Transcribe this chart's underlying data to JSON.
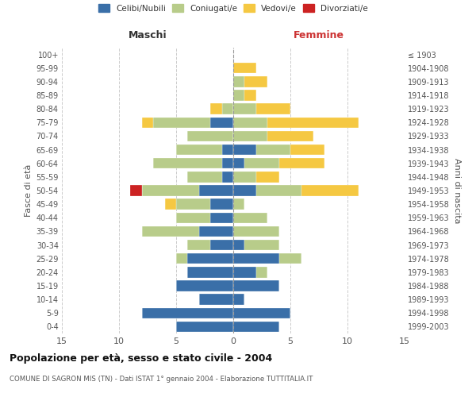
{
  "age_groups": [
    "0-4",
    "5-9",
    "10-14",
    "15-19",
    "20-24",
    "25-29",
    "30-34",
    "35-39",
    "40-44",
    "45-49",
    "50-54",
    "55-59",
    "60-64",
    "65-69",
    "70-74",
    "75-79",
    "80-84",
    "85-89",
    "90-94",
    "95-99",
    "100+"
  ],
  "birth_years": [
    "1999-2003",
    "1994-1998",
    "1989-1993",
    "1984-1988",
    "1979-1983",
    "1974-1978",
    "1969-1973",
    "1964-1968",
    "1959-1963",
    "1954-1958",
    "1949-1953",
    "1944-1948",
    "1939-1943",
    "1934-1938",
    "1929-1933",
    "1924-1928",
    "1919-1923",
    "1914-1918",
    "1909-1913",
    "1904-1908",
    "≤ 1903"
  ],
  "maschi": {
    "celibi": [
      5,
      8,
      3,
      5,
      4,
      4,
      2,
      3,
      2,
      2,
      3,
      1,
      1,
      1,
      0,
      2,
      0,
      0,
      0,
      0,
      0
    ],
    "coniugati": [
      0,
      0,
      0,
      0,
      0,
      1,
      2,
      5,
      3,
      3,
      5,
      3,
      6,
      4,
      4,
      5,
      1,
      0,
      0,
      0,
      0
    ],
    "vedovi": [
      0,
      0,
      0,
      0,
      0,
      0,
      0,
      0,
      0,
      1,
      0,
      0,
      0,
      0,
      0,
      1,
      1,
      0,
      0,
      0,
      0
    ],
    "divorziati": [
      0,
      0,
      0,
      0,
      0,
      0,
      0,
      0,
      0,
      0,
      1,
      0,
      0,
      0,
      0,
      0,
      0,
      0,
      0,
      0,
      0
    ]
  },
  "femmine": {
    "celibi": [
      4,
      5,
      1,
      4,
      2,
      4,
      1,
      0,
      0,
      0,
      2,
      0,
      1,
      2,
      0,
      0,
      0,
      0,
      0,
      0,
      0
    ],
    "coniugati": [
      0,
      0,
      0,
      0,
      1,
      2,
      3,
      4,
      3,
      1,
      4,
      2,
      3,
      3,
      3,
      3,
      2,
      1,
      1,
      0,
      0
    ],
    "vedovi": [
      0,
      0,
      0,
      0,
      0,
      0,
      0,
      0,
      0,
      0,
      5,
      2,
      4,
      3,
      4,
      8,
      3,
      1,
      2,
      2,
      0
    ],
    "divorziati": [
      0,
      0,
      0,
      0,
      0,
      0,
      0,
      0,
      0,
      0,
      0,
      0,
      0,
      0,
      0,
      0,
      0,
      0,
      0,
      0,
      0
    ]
  },
  "colors": {
    "celibi": "#3a6fa8",
    "coniugati": "#b8cc8a",
    "vedovi": "#f5c842",
    "divorziati": "#cc2222"
  },
  "xlim": 15,
  "title": "Popolazione per età, sesso e stato civile - 2004",
  "subtitle": "COMUNE DI SAGRON MIS (TN) - Dati ISTAT 1° gennaio 2004 - Elaborazione TUTTITALIA.IT",
  "ylabel_left": "Fasce di età",
  "ylabel_right": "Anni di nascita",
  "xlabel_maschi": "Maschi",
  "xlabel_femmine": "Femmine",
  "legend_labels": [
    "Celibi/Nubili",
    "Coniugati/e",
    "Vedovi/e",
    "Divorziati/e"
  ],
  "background_color": "#ffffff",
  "grid_color": "#cccccc"
}
